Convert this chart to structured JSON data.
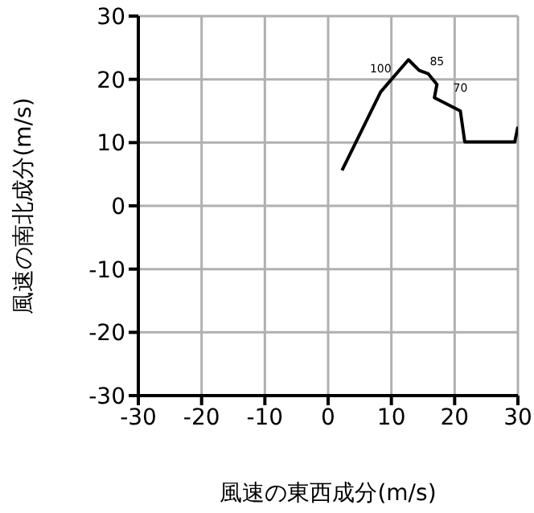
{
  "chart_data": {
    "type": "line",
    "xlabel": "風速の東西成分(m/s)",
    "ylabel": "風速の南北成分(m/s)",
    "x": [
      2.2,
      8.3,
      12.7,
      14.4,
      15.8,
      17.2,
      16.8,
      20.9,
      21.6,
      29.5,
      30
    ],
    "series": [
      {
        "color": "#000000",
        "values": [
          5.6,
          18.0,
          23.1,
          21.4,
          20.9,
          19.2,
          17.1,
          15.0,
          10.1,
          10.1,
          12.5
        ]
      }
    ],
    "xlim": [
      -30,
      30
    ],
    "ylim": [
      -30,
      30
    ],
    "xticks": [
      -30,
      -20,
      -10,
      0,
      10,
      20,
      30
    ],
    "yticks": [
      -30,
      -20,
      -10,
      0,
      10,
      20,
      30
    ],
    "grid": true,
    "marker": "none",
    "annotations": [
      {
        "text": "100",
        "x": 8.3,
        "y": 18.0
      },
      {
        "text": "85",
        "x": 17.2,
        "y": 19.2
      },
      {
        "text": "70",
        "x": 20.9,
        "y": 15.0
      }
    ]
  }
}
